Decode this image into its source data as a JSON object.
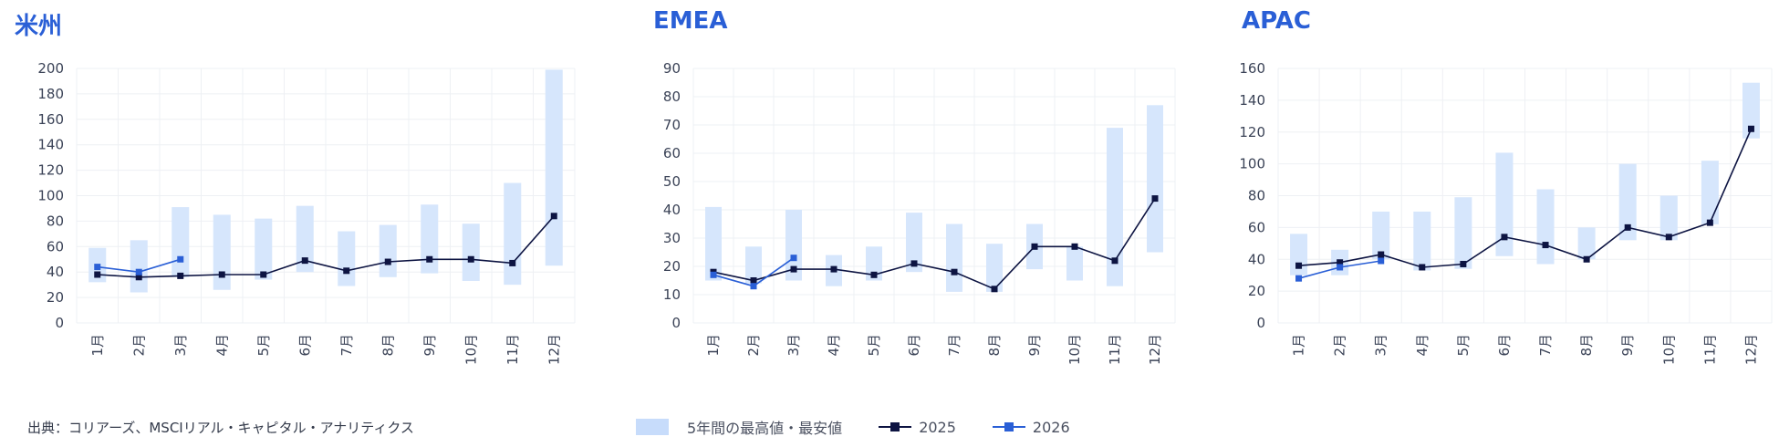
{
  "source": "出典：コリアーズ、MSCIリアル・キャピタル・アナリティクス",
  "legend": {
    "range_label": "5年間の最高値・最安値",
    "series_2025": "2025",
    "series_2026": "2026"
  },
  "colors": {
    "title": "#2a5fd6",
    "range": "#d6e6fc",
    "series_2025": "#0d1442",
    "series_2026": "#2a5fd6",
    "grid": "#eef0f4"
  },
  "chart_data": [
    {
      "type": "bar",
      "title": "米州",
      "categories": [
        "1月",
        "2月",
        "3月",
        "4月",
        "5月",
        "6月",
        "7月",
        "8月",
        "9月",
        "10月",
        "11月",
        "12月"
      ],
      "ylim": [
        0,
        200
      ],
      "yticks": [
        0,
        20,
        40,
        60,
        80,
        100,
        120,
        140,
        160,
        180,
        200
      ],
      "grid": true,
      "range": {
        "name": "5年間の最高値・最安値",
        "low": [
          32,
          24,
          36,
          26,
          34,
          40,
          29,
          36,
          39,
          33,
          30,
          45
        ],
        "high": [
          59,
          65,
          91,
          85,
          82,
          92,
          72,
          77,
          93,
          78,
          110,
          199
        ]
      },
      "series": [
        {
          "name": "2025",
          "values": [
            38,
            36,
            37,
            38,
            38,
            49,
            41,
            48,
            50,
            50,
            47,
            84
          ]
        },
        {
          "name": "2026",
          "values": [
            44,
            40,
            50,
            null,
            null,
            null,
            null,
            null,
            null,
            null,
            null,
            null
          ]
        }
      ]
    },
    {
      "type": "bar",
      "title": "EMEA",
      "categories": [
        "1月",
        "2月",
        "3月",
        "4月",
        "5月",
        "6月",
        "7月",
        "8月",
        "9月",
        "10月",
        "11月",
        "12月"
      ],
      "ylim": [
        0,
        90
      ],
      "yticks": [
        0,
        10,
        20,
        30,
        40,
        50,
        60,
        70,
        80,
        90
      ],
      "grid": true,
      "range": {
        "name": "5年間の最高値・最安値",
        "low": [
          15,
          14,
          15,
          13,
          15,
          18,
          11,
          11,
          19,
          15,
          13,
          25
        ],
        "high": [
          41,
          27,
          40,
          24,
          27,
          39,
          35,
          28,
          35,
          27,
          69,
          77
        ]
      },
      "series": [
        {
          "name": "2025",
          "values": [
            18,
            15,
            19,
            19,
            17,
            21,
            18,
            12,
            27,
            27,
            22,
            44
          ]
        },
        {
          "name": "2026",
          "values": [
            17,
            13,
            23,
            null,
            null,
            null,
            null,
            null,
            null,
            null,
            null,
            null
          ]
        }
      ]
    },
    {
      "type": "bar",
      "title": "APAC",
      "categories": [
        "1月",
        "2月",
        "3月",
        "4月",
        "5月",
        "6月",
        "7月",
        "8月",
        "9月",
        "10月",
        "11月",
        "12月"
      ],
      "ylim": [
        0,
        160
      ],
      "yticks": [
        0,
        20,
        40,
        60,
        80,
        100,
        120,
        140,
        160
      ],
      "grid": true,
      "range": {
        "name": "5年間の最高値・最安値",
        "low": [
          30,
          30,
          40,
          33,
          34,
          42,
          37,
          40,
          52,
          52,
          62,
          116
        ],
        "high": [
          56,
          46,
          70,
          70,
          79,
          107,
          84,
          60,
          100,
          80,
          102,
          151
        ]
      },
      "series": [
        {
          "name": "2025",
          "values": [
            36,
            38,
            43,
            35,
            37,
            54,
            49,
            40,
            60,
            54,
            63,
            122
          ]
        },
        {
          "name": "2026",
          "values": [
            28,
            35,
            39,
            null,
            null,
            null,
            null,
            null,
            null,
            null,
            null,
            null
          ]
        }
      ]
    }
  ]
}
